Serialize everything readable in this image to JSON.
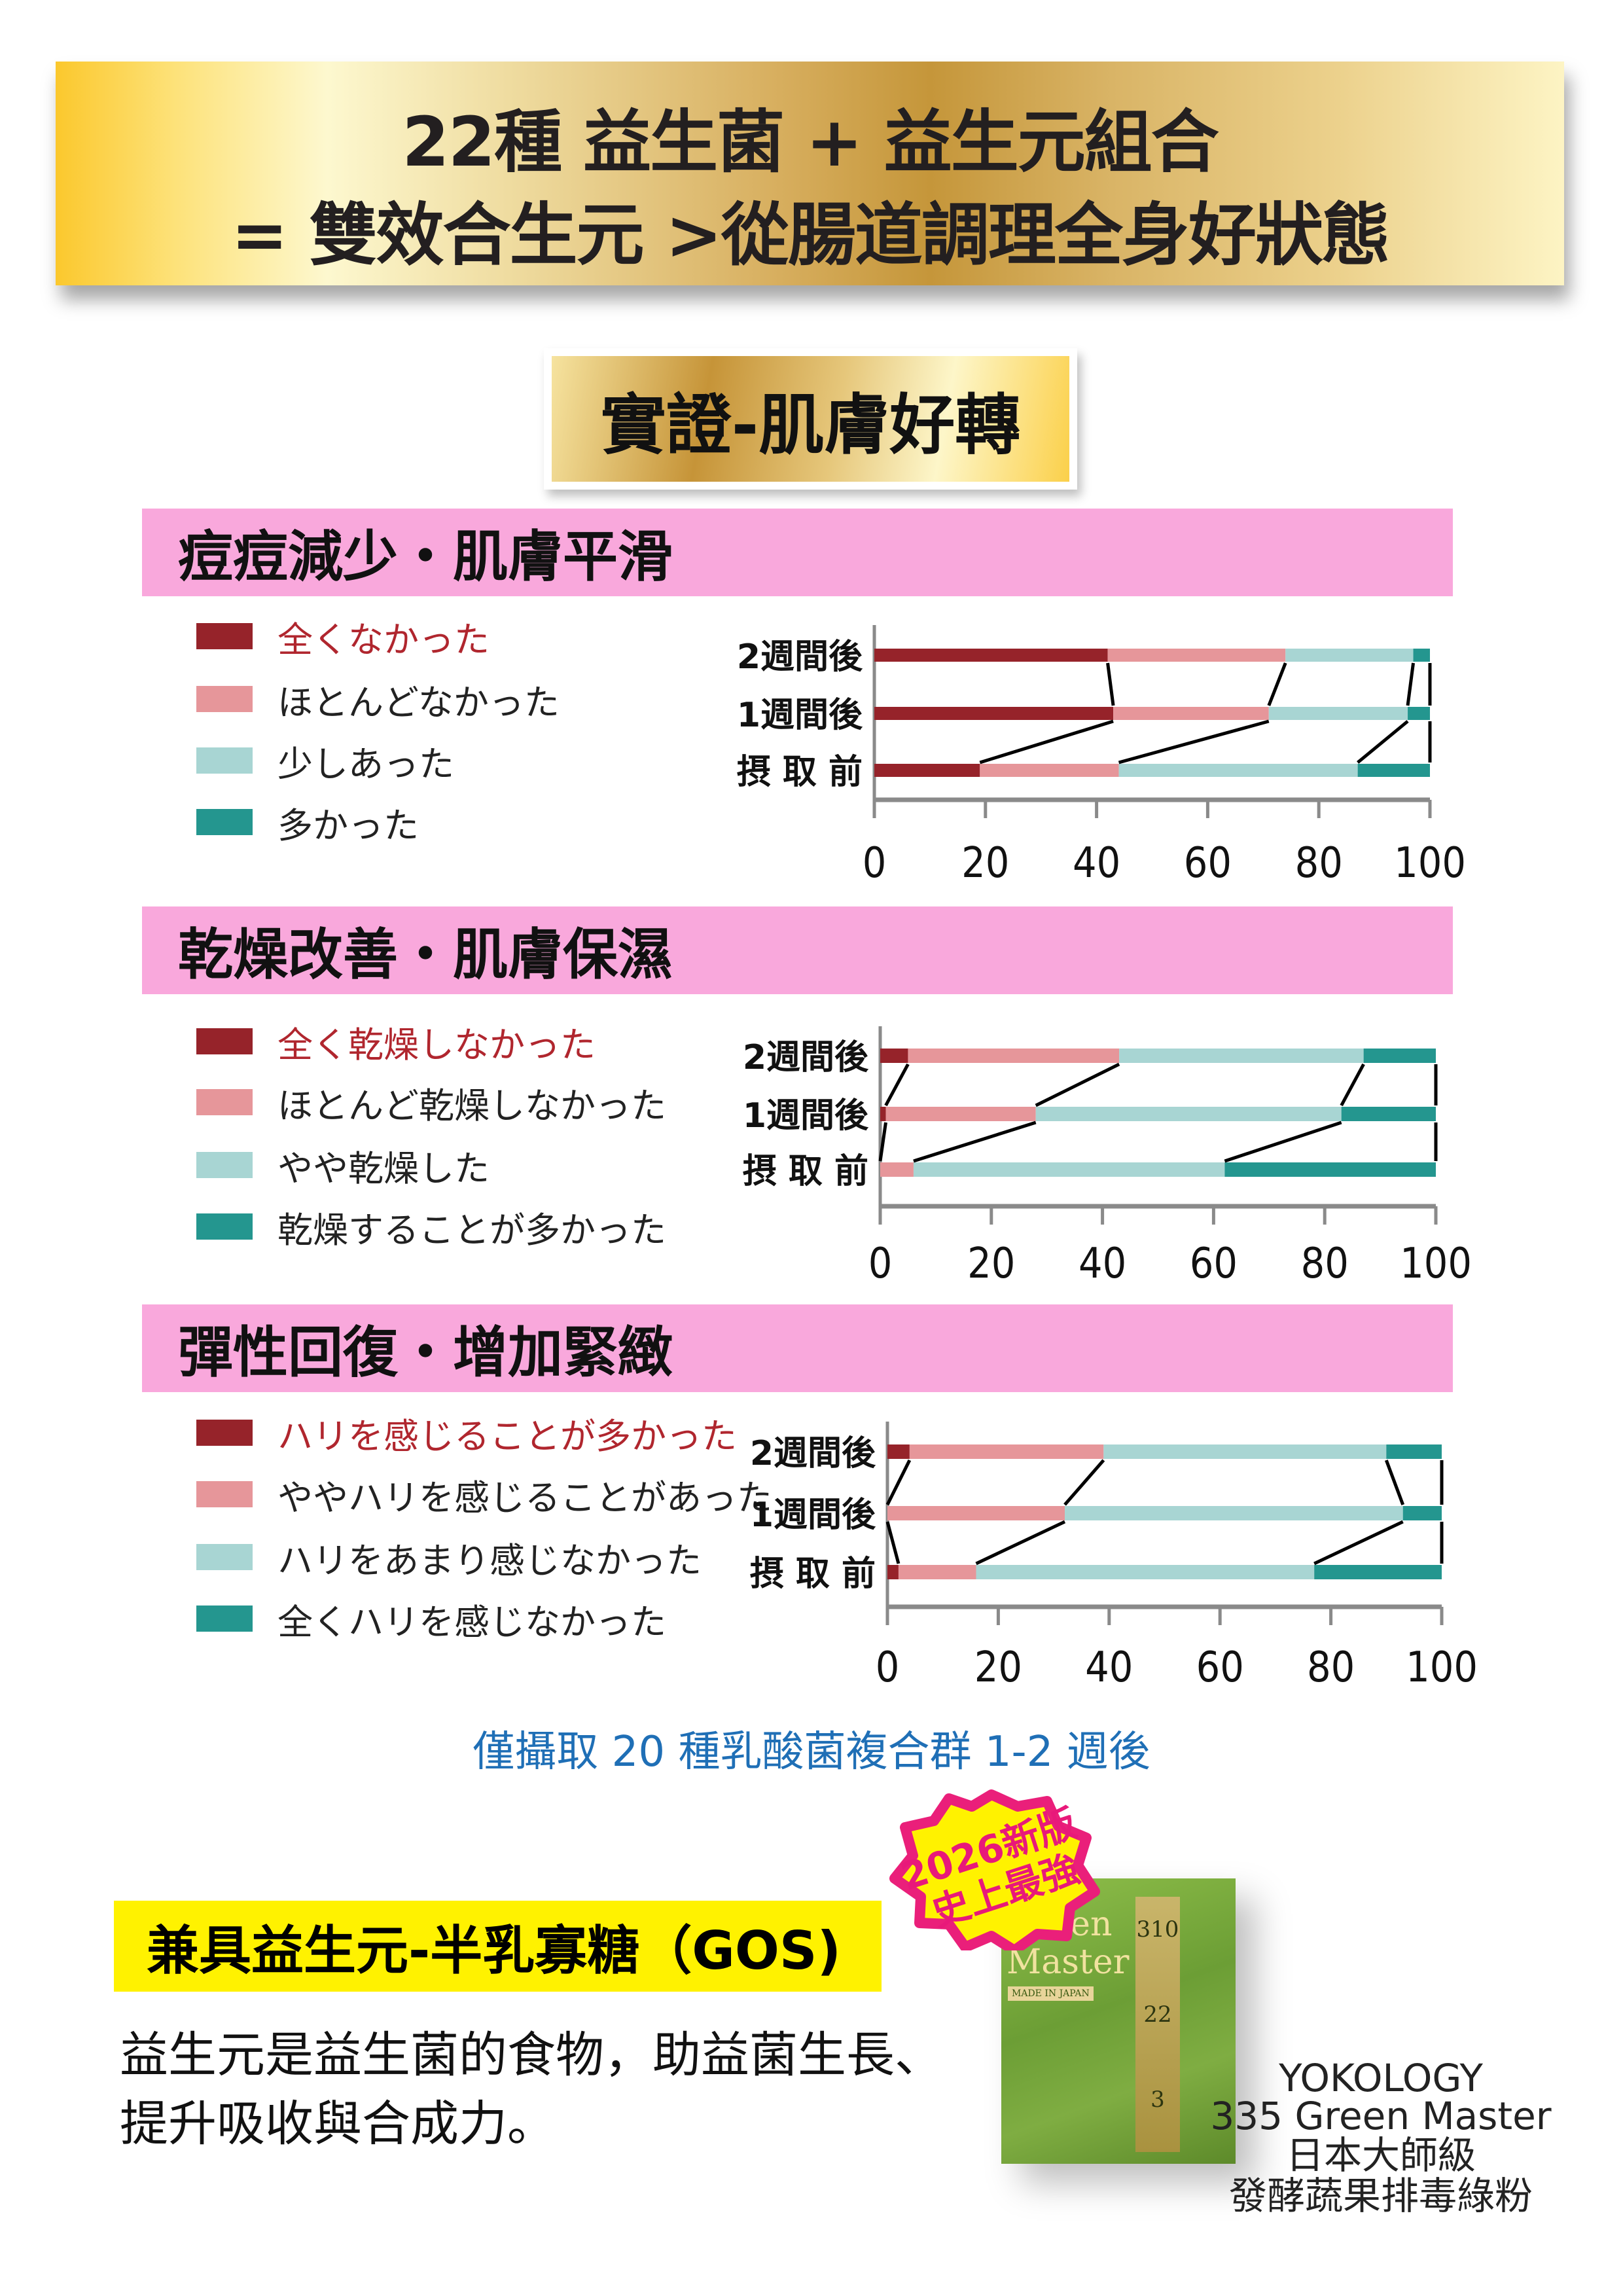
{
  "header": {
    "line1": "22種 益生菌 + 益生元組合",
    "line2": "= 雙效合生元 >從腸道調理全身好狀態"
  },
  "subtitle": "實證-肌膚好轉",
  "colors": {
    "dark_red": "#96232a",
    "pink": "#e6969a",
    "light_teal": "#a8d5d3",
    "teal": "#24968f",
    "section_bar": "#f9a8dc",
    "gold": "#c5963a",
    "highlight_yellow": "#fff200",
    "note_blue": "#1f6fb6"
  },
  "chart_data": [
    {
      "type": "bar",
      "stacked": true,
      "orientation": "horizontal",
      "title": "痘痘減少・肌膚平滑",
      "categories": [
        "2週間後",
        "1週間後",
        "摂 取 前"
      ],
      "series": [
        {
          "name": "全くなかった",
          "values": [
            42,
            43,
            19
          ]
        },
        {
          "name": "ほとんどなかった",
          "values": [
            32,
            28,
            25
          ]
        },
        {
          "name": "少しあった",
          "values": [
            23,
            25,
            43
          ]
        },
        {
          "name": "多かった",
          "values": [
            3,
            4,
            13
          ]
        }
      ],
      "xlim": [
        0,
        100
      ],
      "ticks": [
        "0",
        "20",
        "40",
        "60",
        "80",
        "100"
      ],
      "grid": false,
      "legend": "left"
    },
    {
      "type": "bar",
      "stacked": true,
      "orientation": "horizontal",
      "title": "乾燥改善・肌膚保濕",
      "categories": [
        "2週間後",
        "1週間後",
        "摂 取 前"
      ],
      "series": [
        {
          "name": "全く乾燥しなかった",
          "values": [
            5,
            1,
            0
          ]
        },
        {
          "name": "ほとんど乾燥しなかった",
          "values": [
            38,
            27,
            6
          ]
        },
        {
          "name": "やや乾燥した",
          "values": [
            44,
            55,
            56
          ]
        },
        {
          "name": "乾燥することが多かった",
          "values": [
            13,
            17,
            38
          ]
        }
      ],
      "xlim": [
        0,
        100
      ],
      "ticks": [
        "0",
        "20",
        "40",
        "60",
        "80",
        "100"
      ],
      "grid": false,
      "legend": "left"
    },
    {
      "type": "bar",
      "stacked": true,
      "orientation": "horizontal",
      "title": "彈性回復・增加緊緻",
      "categories": [
        "2週間後",
        "1週間後",
        "摂 取 前"
      ],
      "series": [
        {
          "name": "ハリを感じることが多かった",
          "values": [
            4,
            0,
            2
          ]
        },
        {
          "name": "ややハリを感じることがあった",
          "values": [
            35,
            32,
            14
          ]
        },
        {
          "name": "ハリをあまり感じなかった",
          "values": [
            51,
            61,
            61
          ]
        },
        {
          "name": "全くハリを感じなかった",
          "values": [
            10,
            7,
            23
          ]
        }
      ],
      "xlim": [
        0,
        100
      ],
      "ticks": [
        "0",
        "20",
        "40",
        "60",
        "80",
        "100"
      ],
      "grid": false,
      "legend": "left"
    }
  ],
  "note": "僅攝取 20 種乳酸菌複合群 1-2 週後",
  "prebiotic": {
    "heading": "兼具益生元-半乳寡糖（GOS)",
    "body_line1": "益生元是益生菌的食物，助益菌生長、",
    "body_line2": "提升吸收與合成力。"
  },
  "badge": {
    "line1": "2026新版",
    "line2": "史上最強"
  },
  "product_image": {
    "name_line1": "Green",
    "name_line2": "Master",
    "made_in": "MADE IN JAPAN",
    "n1": "310",
    "n2": "22",
    "n3": "3"
  },
  "product_caption": {
    "line1": "YOKOLOGY",
    "line2": "335 Green Master",
    "line3": "日本大師級",
    "line4": "發酵蔬果排毒綠粉"
  }
}
